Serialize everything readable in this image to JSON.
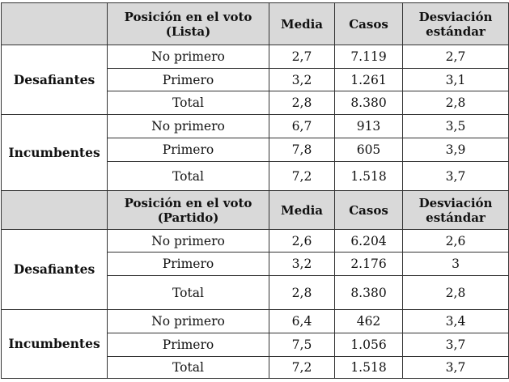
{
  "sections": [
    {
      "header": {
        "col1": "Posición en el voto (Lista)",
        "col2": "Media",
        "col3": "Casos",
        "col4": "Desviación estándar"
      },
      "groups": [
        {
          "name": "Desafiantes",
          "rows": [
            {
              "pos": "No primero",
              "media": "2,7",
              "casos": "7.119",
              "desv": "2,7"
            },
            {
              "pos": "Primero",
              "media": "3,2",
              "casos": "1.261",
              "desv": "3,1"
            },
            {
              "pos": "Total",
              "media": "2,8",
              "casos": "8.380",
              "desv": "2,8"
            }
          ]
        },
        {
          "name": "Incumbentes",
          "rows": [
            {
              "pos": "No primero",
              "media": "6,7",
              "casos": "913",
              "desv": "3,5"
            },
            {
              "pos": "Primero",
              "media": "7,8",
              "casos": "605",
              "desv": "3,9"
            },
            {
              "pos": "Total",
              "media": "7,2",
              "casos": "1.518",
              "desv": "3,7"
            }
          ]
        }
      ]
    },
    {
      "header": {
        "col1": "Posición en el voto (Partido)",
        "col2": "Media",
        "col3": "Casos",
        "col4": "Desviación estándar"
      },
      "groups": [
        {
          "name": "Desafiantes",
          "rows": [
            {
              "pos": "No primero",
              "media": "2,6",
              "casos": "6.204",
              "desv": "2,6"
            },
            {
              "pos": "Primero",
              "media": "3,2",
              "casos": "2.176",
              "desv": "3"
            },
            {
              "pos": "Total",
              "media": "2,8",
              "casos": "8.380",
              "desv": "2,8"
            }
          ]
        },
        {
          "name": "Incumbentes",
          "rows": [
            {
              "pos": "No primero",
              "media": "6,4",
              "casos": "462",
              "desv": "3,4"
            },
            {
              "pos": "Primero",
              "media": "7,5",
              "casos": "1.056",
              "desv": "3,7"
            },
            {
              "pos": "Total",
              "media": "7,2",
              "casos": "1.518",
              "desv": "3,7"
            }
          ]
        }
      ]
    }
  ]
}
